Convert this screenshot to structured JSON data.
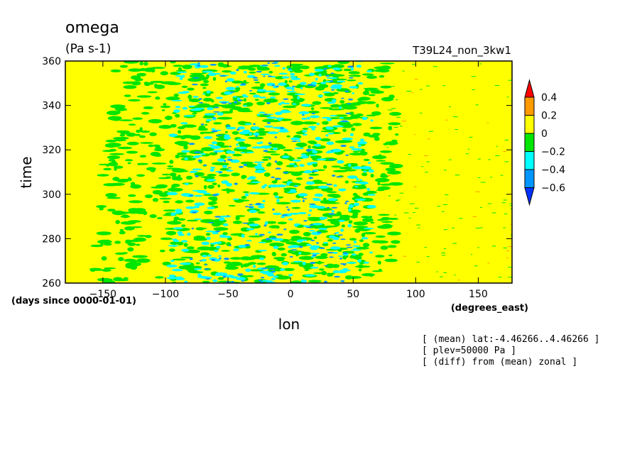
{
  "chart_data": {
    "type": "heatmap",
    "title": "omega",
    "units": "(Pa s-1)",
    "run_label": "T39L24_non_3kw1",
    "xlabel": "lon",
    "xunits": "(degrees_east)",
    "ylabel": "time",
    "yunits": "(days since 0000-01-01)",
    "xlim": [
      -180,
      177
    ],
    "ylim": [
      260,
      360
    ],
    "xticks": [
      -150,
      -100,
      -50,
      0,
      50,
      100,
      150
    ],
    "yticks": [
      260,
      280,
      300,
      320,
      340,
      360
    ],
    "colorbar": {
      "labels": [
        "0.4",
        "0.2",
        "0",
        "-0.2",
        "-0.4",
        "-0.6"
      ],
      "levels": [
        0.4,
        0.2,
        0,
        -0.2,
        -0.4,
        -0.6
      ],
      "colors": [
        "#ff0000",
        "#ff9a00",
        "#ffff00",
        "#00e600",
        "#00ffff",
        "#0096ff",
        "#0032ff"
      ]
    },
    "background_color": "#ffff00",
    "convective_region_lon": [
      -120,
      75
    ],
    "notes": [
      "[ (mean) lat:-4.46266..4.46266 ]",
      "[ plev=50000 Pa ]",
      "[ (diff) from (mean) zonal ]"
    ]
  }
}
